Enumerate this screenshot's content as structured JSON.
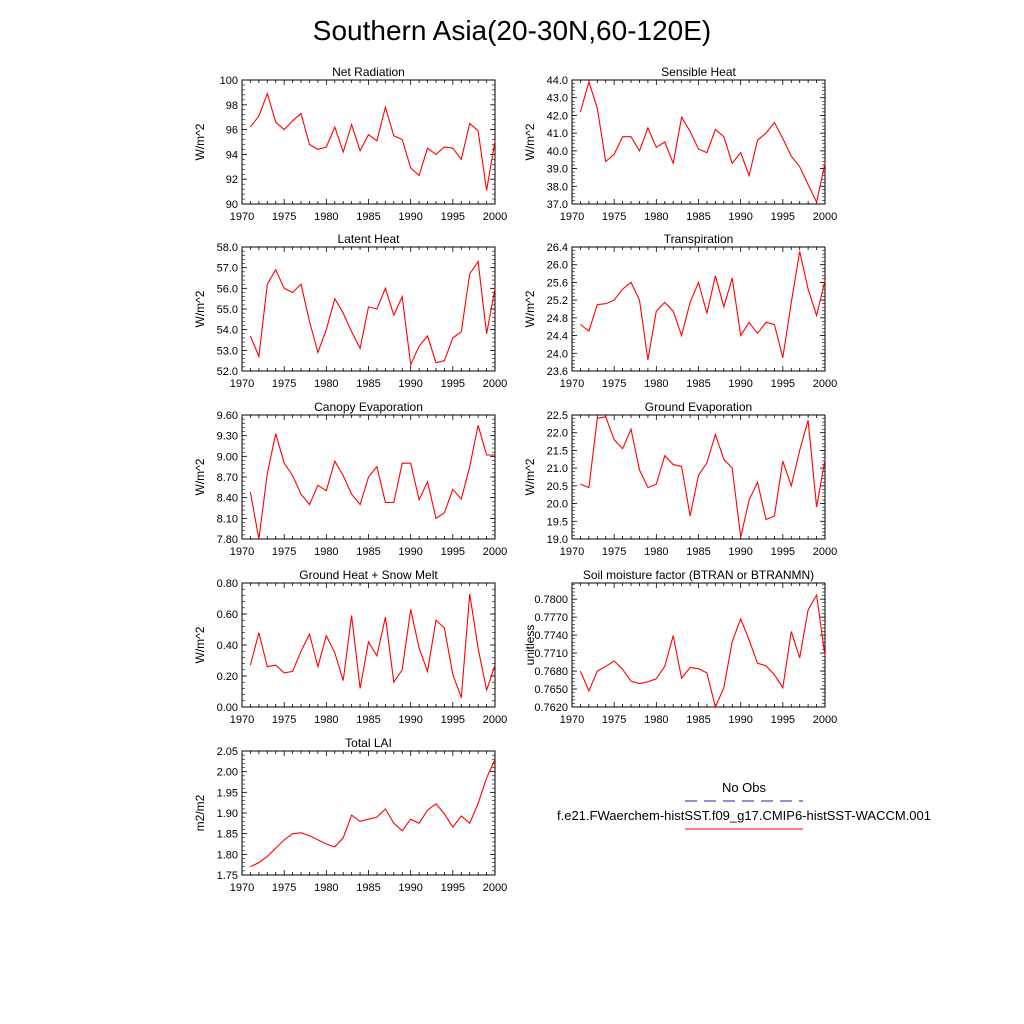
{
  "title": "Southern Asia(20-30N,60-120E)",
  "colors": {
    "model_line": "#ff0000",
    "obs_line": "#2222aa",
    "axis": "#000000"
  },
  "legend": {
    "obs_label": "No Obs",
    "model_label": "f.e21.FWaerchem-histSST.f09_g17.CMIP6-histSST-WACCM.001"
  },
  "chart_data": [
    {
      "type": "line",
      "title": "Net Radiation",
      "ylabel": "W/m^2",
      "xlim": [
        1970,
        2000
      ],
      "ylim": [
        90,
        100
      ],
      "xticks": [
        "1970",
        "1975",
        "1980",
        "1985",
        "1990",
        "1995",
        "2000"
      ],
      "yticks": [
        "90",
        "92",
        "94",
        "96",
        "98",
        "100"
      ],
      "x": [
        1971,
        1972,
        1973,
        1974,
        1975,
        1976,
        1977,
        1978,
        1979,
        1980,
        1981,
        1982,
        1983,
        1984,
        1985,
        1986,
        1987,
        1988,
        1989,
        1990,
        1991,
        1992,
        1993,
        1994,
        1995,
        1996,
        1997,
        1998,
        1999,
        2000
      ],
      "series": [
        {
          "values": [
            96.2,
            97.1,
            98.9,
            96.6,
            96.0,
            96.7,
            97.3,
            94.8,
            94.4,
            94.6,
            96.2,
            94.2,
            96.4,
            94.3,
            95.6,
            95.1,
            97.8,
            95.5,
            95.2,
            92.9,
            92.3,
            94.5,
            94.0,
            94.6,
            94.5,
            93.6,
            96.5,
            95.9,
            91.1,
            95.1
          ]
        }
      ]
    },
    {
      "type": "line",
      "title": "Sensible Heat",
      "ylabel": "W/m^2",
      "xlim": [
        1970,
        2000
      ],
      "ylim": [
        37.0,
        44.0
      ],
      "xticks": [
        "1970",
        "1975",
        "1980",
        "1985",
        "1990",
        "1995",
        "2000"
      ],
      "yticks": [
        "37.0",
        "38.0",
        "39.0",
        "40.0",
        "41.0",
        "42.0",
        "43.0",
        "44.0"
      ],
      "x": [
        1971,
        1972,
        1973,
        1974,
        1975,
        1976,
        1977,
        1978,
        1979,
        1980,
        1981,
        1982,
        1983,
        1984,
        1985,
        1986,
        1987,
        1988,
        1989,
        1990,
        1991,
        1992,
        1993,
        1994,
        1995,
        1996,
        1997,
        1998,
        1999,
        2000
      ],
      "series": [
        {
          "values": [
            42.2,
            43.9,
            42.4,
            39.4,
            39.8,
            40.8,
            40.8,
            40.0,
            41.3,
            40.2,
            40.5,
            39.3,
            41.9,
            41.1,
            40.1,
            39.9,
            41.2,
            40.8,
            39.3,
            39.9,
            38.6,
            40.6,
            41.0,
            41.6,
            40.7,
            39.7,
            39.1,
            38.1,
            37.1,
            39.3
          ]
        }
      ]
    },
    {
      "type": "line",
      "title": "Latent Heat",
      "ylabel": "W/m^2",
      "xlim": [
        1970,
        2000
      ],
      "ylim": [
        52.0,
        58.0
      ],
      "xticks": [
        "1970",
        "1975",
        "1980",
        "1985",
        "1990",
        "1995",
        "2000"
      ],
      "yticks": [
        "52.0",
        "53.0",
        "54.0",
        "55.0",
        "56.0",
        "57.0",
        "58.0"
      ],
      "x": [
        1971,
        1972,
        1973,
        1974,
        1975,
        1976,
        1977,
        1978,
        1979,
        1980,
        1981,
        1982,
        1983,
        1984,
        1985,
        1986,
        1987,
        1988,
        1989,
        1990,
        1991,
        1992,
        1993,
        1994,
        1995,
        1996,
        1997,
        1998,
        1999,
        2000
      ],
      "series": [
        {
          "values": [
            53.7,
            52.7,
            56.2,
            56.9,
            56.0,
            55.8,
            56.2,
            54.4,
            52.9,
            54.0,
            55.5,
            54.8,
            53.9,
            53.1,
            55.1,
            55.0,
            56.0,
            54.7,
            55.6,
            52.3,
            53.2,
            53.7,
            52.4,
            52.5,
            53.6,
            53.9,
            56.7,
            57.3,
            53.8,
            56.0
          ]
        }
      ]
    },
    {
      "type": "line",
      "title": "Transpiration",
      "ylabel": "W/m^2",
      "xlim": [
        1970,
        2000
      ],
      "ylim": [
        23.6,
        26.4
      ],
      "xticks": [
        "1970",
        "1975",
        "1980",
        "1985",
        "1990",
        "1995",
        "2000"
      ],
      "yticks": [
        "23.6",
        "24.0",
        "24.4",
        "24.8",
        "25.2",
        "25.6",
        "26.0",
        "26.4"
      ],
      "x": [
        1971,
        1972,
        1973,
        1974,
        1975,
        1976,
        1977,
        1978,
        1979,
        1980,
        1981,
        1982,
        1983,
        1984,
        1985,
        1986,
        1987,
        1988,
        1989,
        1990,
        1991,
        1992,
        1993,
        1994,
        1995,
        1996,
        1997,
        1998,
        1999,
        2000
      ],
      "series": [
        {
          "values": [
            24.65,
            24.5,
            25.1,
            25.12,
            25.2,
            25.45,
            25.6,
            25.2,
            23.85,
            24.95,
            25.15,
            24.95,
            24.4,
            25.15,
            25.6,
            24.9,
            25.75,
            25.05,
            25.7,
            24.4,
            24.7,
            24.45,
            24.7,
            24.65,
            23.9,
            25.15,
            26.3,
            25.45,
            24.85,
            25.65
          ]
        }
      ]
    },
    {
      "type": "line",
      "title": "Canopy Evaporation",
      "ylabel": "W/m^2",
      "xlim": [
        1970,
        2000
      ],
      "ylim": [
        7.8,
        9.6
      ],
      "xticks": [
        "1970",
        "1975",
        "1980",
        "1985",
        "1990",
        "1995",
        "2000"
      ],
      "yticks": [
        "7.80",
        "8.10",
        "8.40",
        "8.70",
        "9.00",
        "9.30",
        "9.60"
      ],
      "x": [
        1971,
        1972,
        1973,
        1974,
        1975,
        1976,
        1977,
        1978,
        1979,
        1980,
        1981,
        1982,
        1983,
        1984,
        1985,
        1986,
        1987,
        1988,
        1989,
        1990,
        1991,
        1992,
        1993,
        1994,
        1995,
        1996,
        1997,
        1998,
        1999,
        2000
      ],
      "series": [
        {
          "values": [
            8.48,
            7.8,
            8.75,
            9.33,
            8.9,
            8.72,
            8.45,
            8.3,
            8.58,
            8.5,
            8.93,
            8.72,
            8.45,
            8.3,
            8.7,
            8.85,
            8.33,
            8.33,
            8.9,
            8.9,
            8.37,
            8.63,
            8.1,
            8.18,
            8.52,
            8.38,
            8.85,
            9.45,
            9.02,
            9.02
          ]
        }
      ]
    },
    {
      "type": "line",
      "title": "Ground Evaporation",
      "ylabel": "W/m^2",
      "xlim": [
        1970,
        2000
      ],
      "ylim": [
        19.0,
        22.5
      ],
      "xticks": [
        "1970",
        "1975",
        "1980",
        "1985",
        "1990",
        "1995",
        "2000"
      ],
      "yticks": [
        "19.0",
        "19.5",
        "20.0",
        "20.5",
        "21.0",
        "21.5",
        "22.0",
        "22.5"
      ],
      "x": [
        1971,
        1972,
        1973,
        1974,
        1975,
        1976,
        1977,
        1978,
        1979,
        1980,
        1981,
        1982,
        1983,
        1984,
        1985,
        1986,
        1987,
        1988,
        1989,
        1990,
        1991,
        1992,
        1993,
        1994,
        1995,
        1996,
        1997,
        1998,
        1999,
        2000
      ],
      "series": [
        {
          "values": [
            20.55,
            20.45,
            22.4,
            22.45,
            21.8,
            21.55,
            22.1,
            20.95,
            20.45,
            20.55,
            21.35,
            21.1,
            21.05,
            19.65,
            20.8,
            21.15,
            21.95,
            21.25,
            21.0,
            19.05,
            20.1,
            20.6,
            19.55,
            19.65,
            21.2,
            20.5,
            21.5,
            22.35,
            19.9,
            21.25
          ]
        }
      ]
    },
    {
      "type": "line",
      "title": "Ground Heat + Snow Melt",
      "ylabel": "W/m^2",
      "xlim": [
        1970,
        2000
      ],
      "ylim": [
        0.0,
        0.8
      ],
      "xticks": [
        "1970",
        "1975",
        "1980",
        "1985",
        "1990",
        "1995",
        "2000"
      ],
      "yticks": [
        "0.00",
        "0.20",
        "0.40",
        "0.60",
        "0.80"
      ],
      "x": [
        1971,
        1972,
        1973,
        1974,
        1975,
        1976,
        1977,
        1978,
        1979,
        1980,
        1981,
        1982,
        1983,
        1984,
        1985,
        1986,
        1987,
        1988,
        1989,
        1990,
        1991,
        1992,
        1993,
        1994,
        1995,
        1996,
        1997,
        1998,
        1999,
        2000
      ],
      "series": [
        {
          "values": [
            0.27,
            0.48,
            0.26,
            0.27,
            0.22,
            0.23,
            0.36,
            0.47,
            0.26,
            0.46,
            0.35,
            0.17,
            0.59,
            0.12,
            0.42,
            0.33,
            0.58,
            0.16,
            0.24,
            0.63,
            0.38,
            0.23,
            0.56,
            0.51,
            0.21,
            0.06,
            0.73,
            0.38,
            0.11,
            0.27
          ]
        }
      ]
    },
    {
      "type": "line",
      "title": "Soil moisture factor (BTRAN or BTRANMN)",
      "ylabel": "unitless",
      "xlim": [
        1970,
        2000
      ],
      "ylim": [
        0.762,
        0.7827
      ],
      "xticks": [
        "1970",
        "1975",
        "1980",
        "1985",
        "1990",
        "1995",
        "2000"
      ],
      "yticks": [
        "0.7620",
        "0.7650",
        "0.7680",
        "0.7710",
        "0.7740",
        "0.7770",
        "0.7800"
      ],
      "x": [
        1971,
        1972,
        1973,
        1974,
        1975,
        1976,
        1977,
        1978,
        1979,
        1980,
        1981,
        1982,
        1983,
        1984,
        1985,
        1986,
        1987,
        1988,
        1989,
        1990,
        1991,
        1992,
        1993,
        1994,
        1995,
        1996,
        1997,
        1998,
        1999,
        2000
      ],
      "series": [
        {
          "values": [
            0.768,
            0.7647,
            0.768,
            0.7688,
            0.7697,
            0.7683,
            0.7663,
            0.7659,
            0.7662,
            0.7667,
            0.7688,
            0.7739,
            0.7668,
            0.7686,
            0.7684,
            0.7677,
            0.762,
            0.7652,
            0.7729,
            0.7767,
            0.7732,
            0.7693,
            0.7689,
            0.7674,
            0.7652,
            0.7746,
            0.7702,
            0.7782,
            0.7807,
            0.7705
          ]
        }
      ]
    },
    {
      "type": "line",
      "title": "Total LAI",
      "ylabel": "m2/m2",
      "xlim": [
        1970,
        2000
      ],
      "ylim": [
        1.75,
        2.05
      ],
      "xticks": [
        "1970",
        "1975",
        "1980",
        "1985",
        "1990",
        "1995",
        "2000"
      ],
      "yticks": [
        "1.75",
        "1.80",
        "1.85",
        "1.90",
        "1.95",
        "2.00",
        "2.05"
      ],
      "x": [
        1971,
        1972,
        1973,
        1974,
        1975,
        1976,
        1977,
        1978,
        1979,
        1980,
        1981,
        1982,
        1983,
        1984,
        1985,
        1986,
        1987,
        1988,
        1989,
        1990,
        1991,
        1992,
        1993,
        1994,
        1995,
        1996,
        1997,
        1998,
        1999,
        2000
      ],
      "series": [
        {
          "values": [
            1.77,
            1.78,
            1.795,
            1.815,
            1.835,
            1.85,
            1.852,
            1.845,
            1.835,
            1.825,
            1.818,
            1.84,
            1.895,
            1.88,
            1.885,
            1.89,
            1.91,
            1.875,
            1.857,
            1.885,
            1.875,
            1.907,
            1.922,
            1.898,
            1.866,
            1.893,
            1.875,
            1.923,
            1.985,
            2.03
          ]
        }
      ]
    }
  ]
}
